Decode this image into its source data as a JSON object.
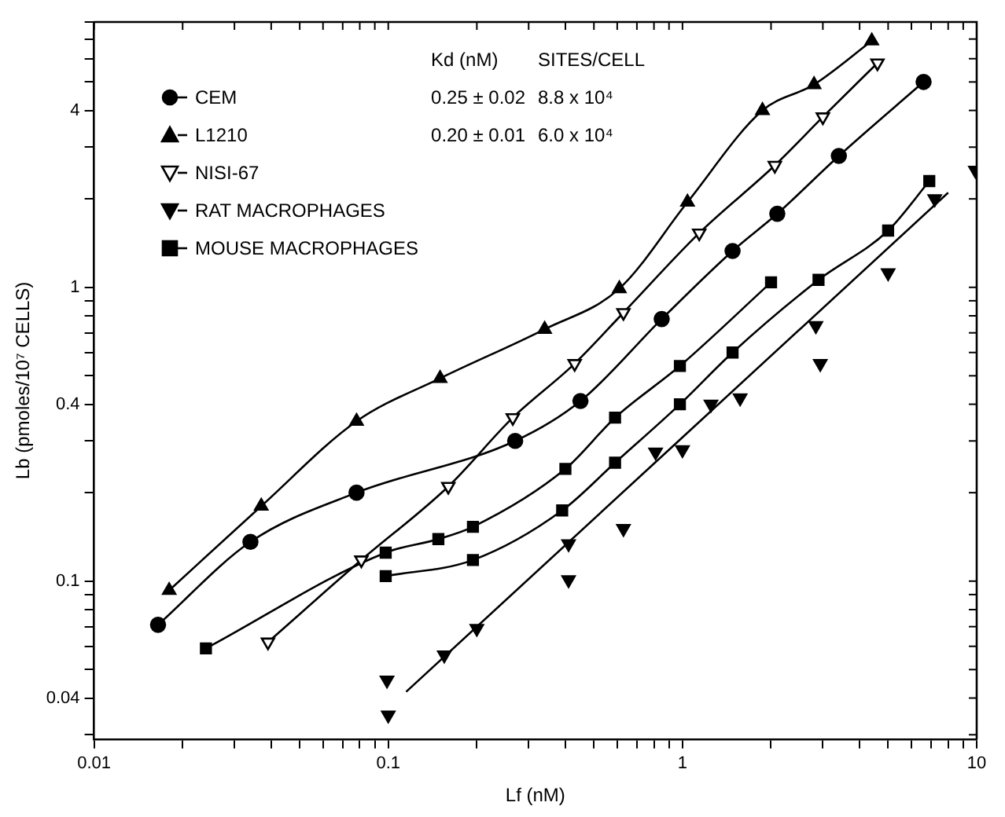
{
  "chart_data": {
    "type": "line",
    "xlabel": "Lf (nM)",
    "ylabel": "Lb (pmoles/10⁷ CELLS)",
    "log": "xy",
    "grid": false,
    "legend": "top left",
    "xlim": [
      0.01,
      10
    ],
    "ylim": [
      0.029,
      8
    ],
    "xticks": [
      0.01,
      {
        "value": 0.02,
        "label": null
      },
      {
        "value": 0.03,
        "label": null
      },
      {
        "value": 0.04,
        "label": null
      },
      {
        "value": 0.05,
        "label": null
      },
      {
        "value": 0.06,
        "label": null
      },
      {
        "value": 0.07,
        "label": null
      },
      {
        "value": 0.08,
        "label": null
      },
      {
        "value": 0.09,
        "label": null
      },
      0.1,
      {
        "value": 0.2,
        "label": null
      },
      {
        "value": 0.3,
        "label": null
      },
      {
        "value": 0.4,
        "label": null
      },
      {
        "value": 0.5,
        "label": null
      },
      {
        "value": 0.6,
        "label": null
      },
      {
        "value": 0.7,
        "label": null
      },
      {
        "value": 0.8,
        "label": null
      },
      {
        "value": 0.9,
        "label": null
      },
      1,
      {
        "value": 2,
        "label": null
      },
      {
        "value": 3,
        "label": null
      },
      {
        "value": 4,
        "label": null
      },
      {
        "value": 5,
        "label": null
      },
      {
        "value": 6,
        "label": null
      },
      {
        "value": 7,
        "label": null
      },
      {
        "value": 8,
        "label": null
      },
      {
        "value": 9,
        "label": null
      },
      10
    ],
    "yticks": [
      {
        "value": 0.03,
        "label": null
      },
      0.04,
      {
        "value": 0.05,
        "label": null
      },
      {
        "value": 0.06,
        "label": null
      },
      {
        "value": 0.07,
        "label": null
      },
      {
        "value": 0.08,
        "label": null
      },
      {
        "value": 0.09,
        "label": null
      },
      0.1,
      {
        "value": 0.2,
        "label": null
      },
      {
        "value": 0.3,
        "label": null
      },
      0.4,
      {
        "value": 0.5,
        "label": null
      },
      {
        "value": 0.6,
        "label": null
      },
      {
        "value": 0.7,
        "label": null
      },
      {
        "value": 0.8,
        "label": null
      },
      {
        "value": 0.9,
        "label": null
      },
      1,
      {
        "value": 2,
        "label": null
      },
      {
        "value": 3,
        "label": null
      },
      4,
      {
        "value": 5,
        "label": null
      },
      {
        "value": 6,
        "label": null
      },
      {
        "value": 7,
        "label": null
      },
      {
        "value": 8,
        "label": null
      }
    ],
    "annotations": [
      "Kd (nM)",
      "SITES/CELL",
      "0.25 ± 0.02",
      "8.8 x 10⁴",
      "0.20 ± 0.01",
      "6.0 x 10⁴"
    ],
    "series": [
      {
        "name": "CEM",
        "marker": "circle",
        "color": "#000000",
        "x": [
          0.0165,
          0.034,
          0.078,
          0.27,
          0.45,
          0.85,
          1.48,
          2.1,
          3.4,
          6.6
        ],
        "values": [
          0.071,
          0.136,
          0.2,
          0.3,
          0.41,
          0.78,
          1.33,
          1.78,
          2.8,
          5.0
        ]
      },
      {
        "name": "L1210",
        "marker": "triangle",
        "color": "#000000",
        "x": [
          0.018,
          0.037,
          0.078,
          0.15,
          0.34,
          0.61,
          1.04,
          1.87,
          2.8,
          4.4
        ],
        "values": [
          0.093,
          0.18,
          0.35,
          0.49,
          0.72,
          0.99,
          1.95,
          4.0,
          4.9,
          6.9
        ]
      },
      {
        "name": "NISI-67",
        "marker": "triangle-down-open",
        "color": "#000000",
        "x": [
          0.039,
          0.081,
          0.16,
          0.265,
          0.43,
          0.63,
          1.14,
          2.06,
          3.0,
          4.6
        ],
        "values": [
          0.062,
          0.118,
          0.21,
          0.36,
          0.55,
          0.82,
          1.53,
          2.6,
          3.8,
          5.8
        ]
      },
      {
        "name": "RAT MACROPHAGES",
        "type": "scatter",
        "marker": "triangle-down",
        "color": "#000000",
        "x": [
          0.099,
          0.1,
          0.155,
          0.2,
          0.41,
          0.41,
          0.63,
          0.81,
          1.0,
          1.25,
          1.57,
          2.84,
          2.94,
          5.0,
          7.2,
          9.9
        ],
        "values": [
          0.046,
          0.035,
          0.056,
          0.069,
          0.134,
          0.101,
          0.151,
          0.275,
          0.28,
          0.4,
          0.42,
          0.74,
          0.55,
          1.12,
          2.0,
          2.5
        ]
      },
      {
        "marker": "none",
        "color": "#000000",
        "x": [
          0.115,
          8
        ],
        "values": [
          0.042,
          2.1
        ]
      },
      {
        "name": "MOUSE MACROPHAGES",
        "marker": "square",
        "color": "#000000",
        "x": [
          0.024,
          0.098,
          0.148,
          0.194,
          0.4,
          0.59,
          0.98,
          2.0
        ],
        "values": [
          0.059,
          0.125,
          0.139,
          0.153,
          0.241,
          0.36,
          0.54,
          1.04
        ]
      },
      {
        "marker": "square",
        "color": "#000000",
        "x": [
          0.098,
          0.194,
          0.39,
          0.59,
          0.98,
          1.48,
          2.9,
          5.0,
          6.9
        ],
        "values": [
          0.104,
          0.118,
          0.174,
          0.253,
          0.4,
          0.6,
          1.06,
          1.56,
          2.3
        ]
      }
    ]
  }
}
